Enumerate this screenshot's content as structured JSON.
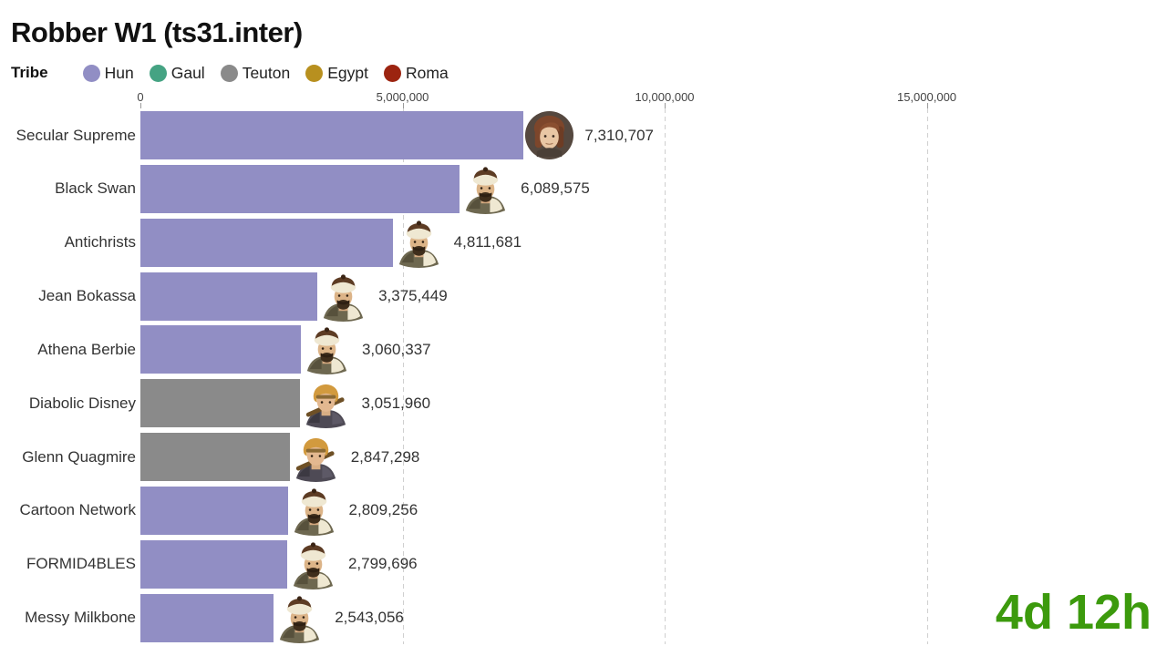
{
  "title": "Robber W1 (ts31.inter)",
  "legend": {
    "label": "Tribe",
    "items": [
      {
        "name": "Hun",
        "color": "#918ec4"
      },
      {
        "name": "Gaul",
        "color": "#45a383"
      },
      {
        "name": "Teuton",
        "color": "#8a8a8a"
      },
      {
        "name": "Egypt",
        "color": "#b8901f"
      },
      {
        "name": "Roma",
        "color": "#9c2410"
      }
    ]
  },
  "time_label": "4d 12h",
  "time_color": "#3c9a0d",
  "chart_data": {
    "type": "bar",
    "orientation": "horizontal",
    "title": "Robber W1 (ts31.inter)",
    "xlabel": "",
    "ylabel": "",
    "xlim": [
      0,
      15700000
    ],
    "x_ticks": [
      0,
      5000000,
      10000000,
      15000000
    ],
    "x_tick_labels": [
      "0",
      "5,000,000",
      "10,000,000",
      "15,000,000"
    ],
    "grid": "dashed-vertical",
    "legend_position": "top-left",
    "bars": [
      {
        "label": "Secular Supreme",
        "value": 7310707,
        "value_label": "7,310,707",
        "tribe": "Hun",
        "avatar": "female-portrait-icon"
      },
      {
        "label": "Black Swan",
        "value": 6089575,
        "value_label": "6,089,575",
        "tribe": "Hun",
        "avatar": "hun-chieftain-icon"
      },
      {
        "label": "Antichrists",
        "value": 4811681,
        "value_label": "4,811,681",
        "tribe": "Hun",
        "avatar": "hun-chieftain-icon"
      },
      {
        "label": "Jean Bokassa",
        "value": 3375449,
        "value_label": "3,375,449",
        "tribe": "Hun",
        "avatar": "hun-chieftain-icon"
      },
      {
        "label": "Athena Berbie",
        "value": 3060337,
        "value_label": "3,060,337",
        "tribe": "Hun",
        "avatar": "hun-chieftain-icon"
      },
      {
        "label": "Diabolic Disney",
        "value": 3051960,
        "value_label": "3,051,960",
        "tribe": "Teuton",
        "avatar": "teuton-warrior-icon"
      },
      {
        "label": "Glenn Quagmire",
        "value": 2847298,
        "value_label": "2,847,298",
        "tribe": "Teuton",
        "avatar": "teuton-warrior-icon"
      },
      {
        "label": "Cartoon Network",
        "value": 2809256,
        "value_label": "2,809,256",
        "tribe": "Hun",
        "avatar": "hun-chieftain-icon"
      },
      {
        "label": "FORMID4BLES",
        "value": 2799696,
        "value_label": "2,799,696",
        "tribe": "Hun",
        "avatar": "hun-chieftain-icon"
      },
      {
        "label": "Messy Milkbone",
        "value": 2543056,
        "value_label": "2,543,056",
        "tribe": "Hun",
        "avatar": "hun-chieftain-icon"
      }
    ],
    "tribe_colors": {
      "Hun": "#918ec4",
      "Gaul": "#45a383",
      "Teuton": "#8a8a8a",
      "Egypt": "#b8901f",
      "Roma": "#9c2410"
    }
  }
}
